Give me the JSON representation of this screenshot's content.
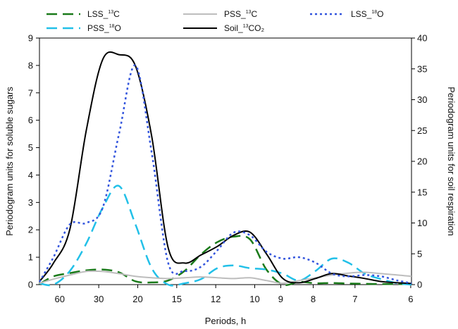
{
  "chart_data": {
    "type": "line",
    "xlabel": "Periods, h",
    "ylabel": "Periodogram units for soluble sugars",
    "y2label": "Periodogram units for soil respiration",
    "x_tick_labels": [
      "60",
      "30",
      "20",
      "15",
      "12",
      "10",
      "9",
      "8",
      "7",
      "6"
    ],
    "x_note": "x axis is frequency; tick labels show period in hours; data x values are frequency in cycles per hour",
    "xlim": [
      0.008,
      0.167
    ],
    "ylim": [
      0,
      9
    ],
    "y2lim": [
      0,
      40
    ],
    "yticks": [
      0,
      1,
      2,
      3,
      4,
      5,
      6,
      7,
      8,
      9
    ],
    "y2ticks": [
      0,
      5,
      10,
      15,
      20,
      25,
      30,
      35,
      40
    ],
    "grid": false,
    "legend_position": "top",
    "series": [
      {
        "name": "LSS_13C",
        "legend_main": "LSS_",
        "legend_sup": "13",
        "legend_tail": "C",
        "axis": "left",
        "color": "#1a7a1a",
        "dash": "long-dash",
        "width": 2.5,
        "x": [
          0.008,
          0.014,
          0.021,
          0.028,
          0.035,
          0.042,
          0.049,
          0.056,
          0.063,
          0.07,
          0.077,
          0.084,
          0.091,
          0.098,
          0.105,
          0.112,
          0.119,
          0.126,
          0.133,
          0.14,
          0.147,
          0.154,
          0.161,
          0.167
        ],
        "y": [
          0.02,
          0.3,
          0.42,
          0.52,
          0.55,
          0.45,
          0.12,
          0.08,
          0.15,
          0.5,
          1.1,
          1.55,
          1.75,
          1.65,
          0.55,
          0.0,
          0.1,
          0.05,
          0.06,
          0.04,
          0.03,
          0.02,
          0.02,
          0.02
        ]
      },
      {
        "name": "PSS_18O",
        "legend_main": "PSS_",
        "legend_sup": "18",
        "legend_tail": "O",
        "axis": "left",
        "color": "#22c0e8",
        "dash": "long-dash",
        "width": 2.5,
        "x": [
          0.008,
          0.014,
          0.021,
          0.028,
          0.035,
          0.042,
          0.049,
          0.056,
          0.063,
          0.07,
          0.077,
          0.084,
          0.091,
          0.098,
          0.105,
          0.112,
          0.119,
          0.126,
          0.133,
          0.14,
          0.147,
          0.154,
          0.161,
          0.167
        ],
        "y": [
          0.05,
          0.0,
          0.5,
          1.5,
          2.8,
          3.6,
          2.2,
          0.6,
          0.0,
          0.05,
          0.2,
          0.6,
          0.7,
          0.6,
          0.55,
          0.4,
          0.15,
          0.5,
          0.95,
          0.8,
          0.4,
          0.2,
          0.05,
          0.0
        ]
      },
      {
        "name": "PSS_13C",
        "legend_main": "PSS_",
        "legend_sup": "13",
        "legend_tail": "C",
        "axis": "left",
        "color": "#bdbdbd",
        "dash": "solid",
        "width": 2,
        "x": [
          0.008,
          0.014,
          0.021,
          0.028,
          0.035,
          0.042,
          0.049,
          0.056,
          0.063,
          0.07,
          0.077,
          0.084,
          0.091,
          0.098,
          0.105,
          0.112,
          0.119,
          0.126,
          0.133,
          0.14,
          0.147,
          0.154,
          0.161,
          0.167
        ],
        "y": [
          0.05,
          0.2,
          0.35,
          0.48,
          0.48,
          0.4,
          0.3,
          0.25,
          0.22,
          0.25,
          0.28,
          0.25,
          0.22,
          0.25,
          0.15,
          0.05,
          0.15,
          0.25,
          0.35,
          0.42,
          0.45,
          0.4,
          0.35,
          0.3
        ]
      },
      {
        "name": "Soil_13CO2",
        "legend_main": "Soil_",
        "legend_sup": "13",
        "legend_tail": "CO₂",
        "axis": "right",
        "color": "#000000",
        "dash": "solid",
        "width": 2,
        "x": [
          0.008,
          0.014,
          0.021,
          0.028,
          0.035,
          0.042,
          0.049,
          0.056,
          0.063,
          0.07,
          0.077,
          0.084,
          0.091,
          0.098,
          0.105,
          0.112,
          0.119,
          0.126,
          0.133,
          0.14,
          0.147,
          0.154,
          0.161,
          0.167
        ],
        "y": [
          0.5,
          3.5,
          9.0,
          25.0,
          36.5,
          37.3,
          35.5,
          24.0,
          6.0,
          3.5,
          4.8,
          6.2,
          8.0,
          8.5,
          5.0,
          1.0,
          0.3,
          1.0,
          1.8,
          1.4,
          1.0,
          0.5,
          0.3,
          0.2
        ]
      },
      {
        "name": "LSS_18O",
        "legend_main": "LSS_",
        "legend_sup": "18",
        "legend_tail": "O",
        "axis": "left",
        "color": "#3355dd",
        "dash": "dotted",
        "width": 2.5,
        "x": [
          0.008,
          0.014,
          0.021,
          0.028,
          0.035,
          0.042,
          0.049,
          0.056,
          0.063,
          0.07,
          0.077,
          0.084,
          0.091,
          0.098,
          0.105,
          0.112,
          0.119,
          0.126,
          0.133,
          0.14,
          0.147,
          0.154,
          0.161,
          0.167
        ],
        "y": [
          0.1,
          1.0,
          2.2,
          2.25,
          2.8,
          5.5,
          8.0,
          4.8,
          0.8,
          0.5,
          0.65,
          1.25,
          1.9,
          1.8,
          1.2,
          0.95,
          1.0,
          0.8,
          0.4,
          0.3,
          0.35,
          0.3,
          0.15,
          0.05
        ]
      }
    ]
  }
}
